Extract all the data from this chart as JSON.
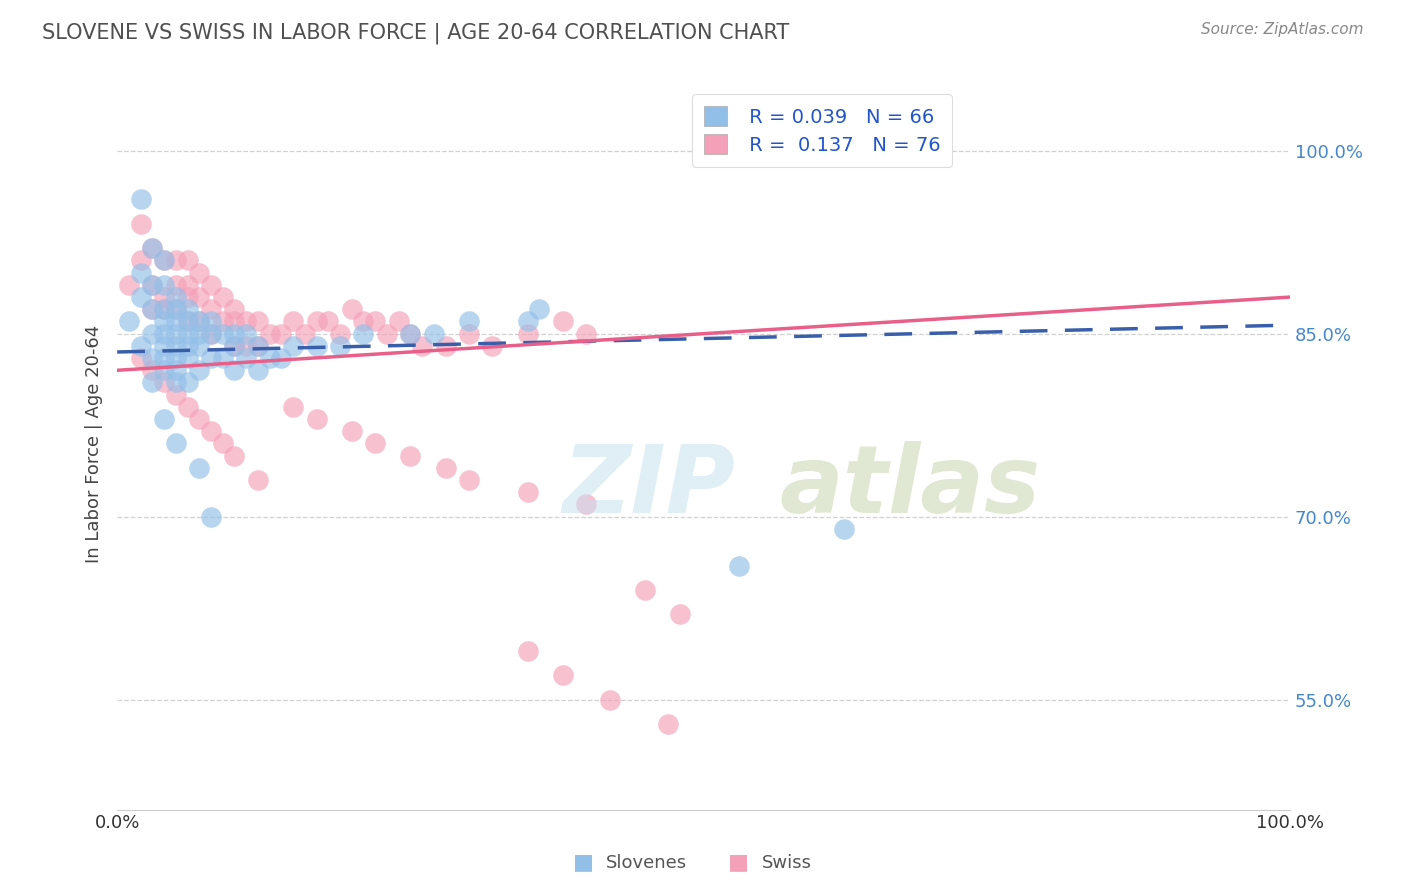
{
  "title": "SLOVENE VS SWISS IN LABOR FORCE | AGE 20-64 CORRELATION CHART",
  "source_text": "Source: ZipAtlas.com",
  "ylabel": "In Labor Force | Age 20-64",
  "xlim": [
    0.0,
    1.0
  ],
  "ylim": [
    0.46,
    1.06
  ],
  "yticks": [
    0.55,
    0.7,
    0.85,
    1.0
  ],
  "ytick_labels": [
    "55.0%",
    "70.0%",
    "85.0%",
    "100.0%"
  ],
  "xtick_labels": [
    "0.0%",
    "100.0%"
  ],
  "slovenes_R": 0.039,
  "slovenes_N": 66,
  "swiss_R": 0.137,
  "swiss_N": 76,
  "slovenes_color": "#92bfe8",
  "swiss_color": "#f4a0b8",
  "slovenes_line_color": "#3a5faa",
  "swiss_line_color": "#e8608a",
  "background_color": "#ffffff",
  "grid_color": "#cccccc",
  "title_color": "#505050",
  "legend_slovenes": "Slovenes",
  "legend_swiss": "Swiss",
  "slovenes_x": [
    0.01,
    0.02,
    0.02,
    0.02,
    0.02,
    0.03,
    0.03,
    0.03,
    0.03,
    0.03,
    0.03,
    0.04,
    0.04,
    0.04,
    0.04,
    0.04,
    0.04,
    0.04,
    0.04,
    0.05,
    0.05,
    0.05,
    0.05,
    0.05,
    0.05,
    0.05,
    0.05,
    0.06,
    0.06,
    0.06,
    0.06,
    0.06,
    0.06,
    0.07,
    0.07,
    0.07,
    0.07,
    0.08,
    0.08,
    0.08,
    0.09,
    0.09,
    0.1,
    0.1,
    0.1,
    0.11,
    0.11,
    0.12,
    0.12,
    0.13,
    0.14,
    0.15,
    0.17,
    0.19,
    0.21,
    0.25,
    0.27,
    0.3,
    0.35,
    0.36,
    0.04,
    0.05,
    0.07,
    0.08,
    0.62,
    0.53
  ],
  "slovenes_y": [
    0.86,
    0.9,
    0.96,
    0.88,
    0.84,
    0.92,
    0.89,
    0.87,
    0.85,
    0.83,
    0.81,
    0.91,
    0.89,
    0.87,
    0.86,
    0.85,
    0.84,
    0.83,
    0.82,
    0.88,
    0.87,
    0.86,
    0.85,
    0.84,
    0.83,
    0.82,
    0.81,
    0.87,
    0.86,
    0.85,
    0.84,
    0.83,
    0.81,
    0.86,
    0.85,
    0.84,
    0.82,
    0.86,
    0.85,
    0.83,
    0.85,
    0.83,
    0.85,
    0.84,
    0.82,
    0.85,
    0.83,
    0.84,
    0.82,
    0.83,
    0.83,
    0.84,
    0.84,
    0.84,
    0.85,
    0.85,
    0.85,
    0.86,
    0.86,
    0.87,
    0.78,
    0.76,
    0.74,
    0.7,
    0.69,
    0.66
  ],
  "swiss_x": [
    0.01,
    0.02,
    0.02,
    0.03,
    0.03,
    0.03,
    0.04,
    0.04,
    0.04,
    0.05,
    0.05,
    0.05,
    0.06,
    0.06,
    0.06,
    0.06,
    0.07,
    0.07,
    0.07,
    0.08,
    0.08,
    0.08,
    0.09,
    0.09,
    0.1,
    0.1,
    0.1,
    0.11,
    0.11,
    0.12,
    0.12,
    0.13,
    0.14,
    0.15,
    0.16,
    0.17,
    0.18,
    0.19,
    0.2,
    0.21,
    0.22,
    0.23,
    0.24,
    0.25,
    0.26,
    0.28,
    0.3,
    0.32,
    0.35,
    0.38,
    0.4,
    0.15,
    0.17,
    0.2,
    0.22,
    0.25,
    0.28,
    0.3,
    0.35,
    0.4,
    0.02,
    0.03,
    0.04,
    0.05,
    0.06,
    0.07,
    0.08,
    0.09,
    0.1,
    0.12,
    0.45,
    0.48,
    0.35,
    0.38,
    0.42,
    0.47
  ],
  "swiss_y": [
    0.89,
    0.94,
    0.91,
    0.92,
    0.89,
    0.87,
    0.91,
    0.88,
    0.87,
    0.91,
    0.89,
    0.87,
    0.91,
    0.89,
    0.88,
    0.86,
    0.9,
    0.88,
    0.86,
    0.89,
    0.87,
    0.85,
    0.88,
    0.86,
    0.87,
    0.86,
    0.84,
    0.86,
    0.84,
    0.86,
    0.84,
    0.85,
    0.85,
    0.86,
    0.85,
    0.86,
    0.86,
    0.85,
    0.87,
    0.86,
    0.86,
    0.85,
    0.86,
    0.85,
    0.84,
    0.84,
    0.85,
    0.84,
    0.85,
    0.86,
    0.85,
    0.79,
    0.78,
    0.77,
    0.76,
    0.75,
    0.74,
    0.73,
    0.72,
    0.71,
    0.83,
    0.82,
    0.81,
    0.8,
    0.79,
    0.78,
    0.77,
    0.76,
    0.75,
    0.73,
    0.64,
    0.62,
    0.59,
    0.57,
    0.55,
    0.53
  ]
}
